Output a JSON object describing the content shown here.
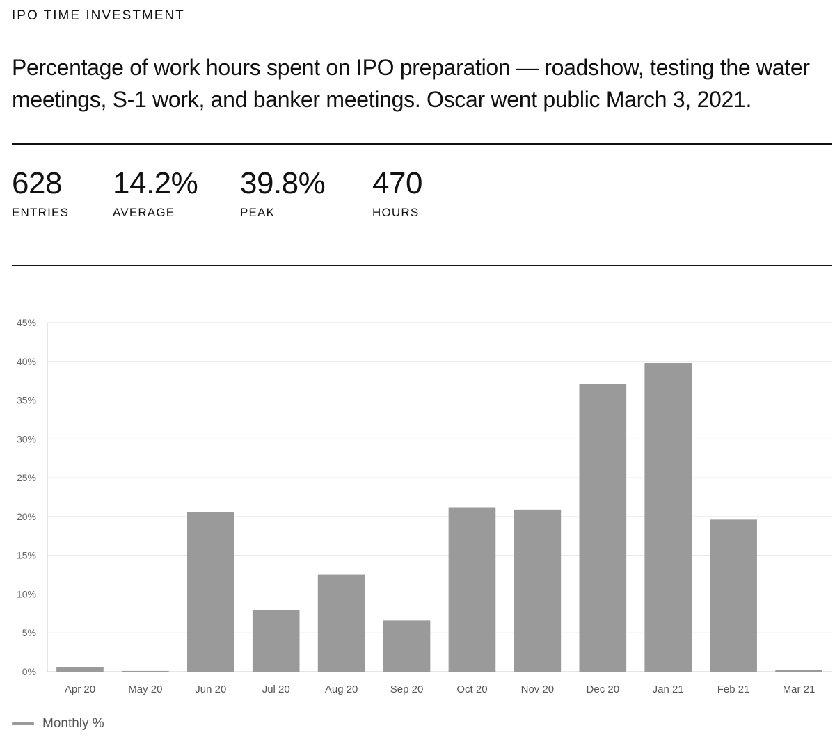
{
  "header": {
    "eyebrow": "IPO TIME INVESTMENT",
    "description": "Percentage of work hours spent on IPO preparation — roadshow, testing the water meetings, S-1 work, and banker meetings. Oscar went public March 3, 2021."
  },
  "stats": [
    {
      "value": "628",
      "label": "ENTRIES"
    },
    {
      "value": "14.2%",
      "label": "AVERAGE"
    },
    {
      "value": "39.8%",
      "label": "PEAK"
    },
    {
      "value": "470",
      "label": "HOURS"
    }
  ],
  "chart_data": {
    "type": "bar",
    "title": "",
    "xlabel": "",
    "ylabel": "",
    "categories": [
      "Apr 20",
      "May 20",
      "Jun 20",
      "Jul 20",
      "Aug 20",
      "Sep 20",
      "Oct 20",
      "Nov 20",
      "Dec 20",
      "Jan 21",
      "Feb 21",
      "Mar 21"
    ],
    "series": [
      {
        "name": "Monthly %",
        "values": [
          0.6,
          0.1,
          20.6,
          7.9,
          12.5,
          6.6,
          21.2,
          20.9,
          37.1,
          39.8,
          19.6,
          0.2
        ]
      }
    ],
    "ylim": [
      0,
      45
    ],
    "yticks": [
      0,
      5,
      10,
      15,
      20,
      25,
      30,
      35,
      40,
      45
    ],
    "ytick_labels": [
      "0%",
      "5%",
      "10%",
      "15%",
      "20%",
      "25%",
      "30%",
      "35%",
      "40%",
      "45%"
    ],
    "grid": true,
    "legend": "bottom-left"
  },
  "colors": {
    "bar": "#9a9a9a",
    "grid": "#e6e6e6",
    "axis": "#cccccc",
    "text": "#111111"
  },
  "legend": {
    "label": "Monthly %"
  }
}
